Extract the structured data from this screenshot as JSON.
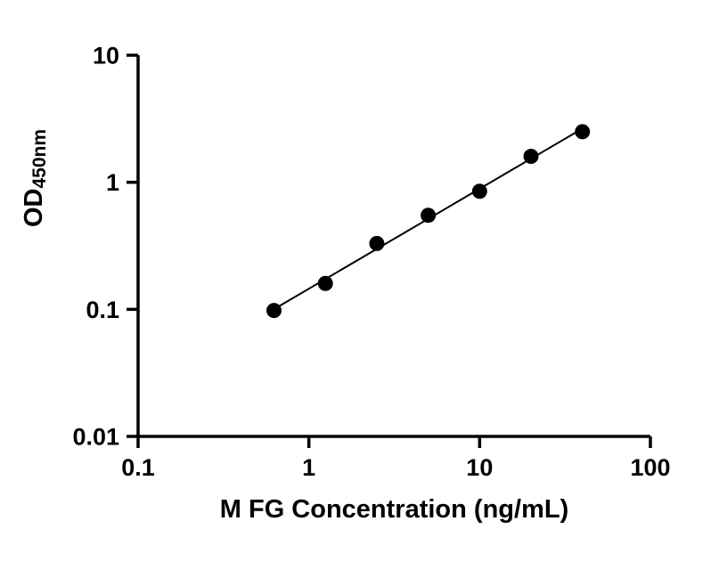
{
  "chart_data": {
    "type": "scatter",
    "title": "",
    "xlabel": "M FG Concentration (ng/mL)",
    "ylabel": "OD",
    "ylabel_subscript": "450nm",
    "x_scale": "log",
    "y_scale": "log",
    "xlim": [
      0.1,
      100
    ],
    "ylim": [
      0.01,
      10
    ],
    "x_ticks": [
      0.1,
      1,
      10,
      100
    ],
    "x_tick_labels": [
      "0.1",
      "1",
      "10",
      "100"
    ],
    "y_ticks": [
      0.01,
      0.1,
      1,
      10
    ],
    "y_tick_labels": [
      "0.01",
      "0.1",
      "1",
      "10"
    ],
    "x": [
      0.625,
      1.25,
      2.5,
      5,
      10,
      20,
      40
    ],
    "y": [
      0.098,
      0.16,
      0.33,
      0.55,
      0.85,
      1.6,
      2.5
    ],
    "trend_line": true,
    "grid": false,
    "legend": "none",
    "axis_color": "#000000",
    "marker_color": "#000000",
    "line_color": "#000000",
    "background_color": "#ffffff"
  }
}
